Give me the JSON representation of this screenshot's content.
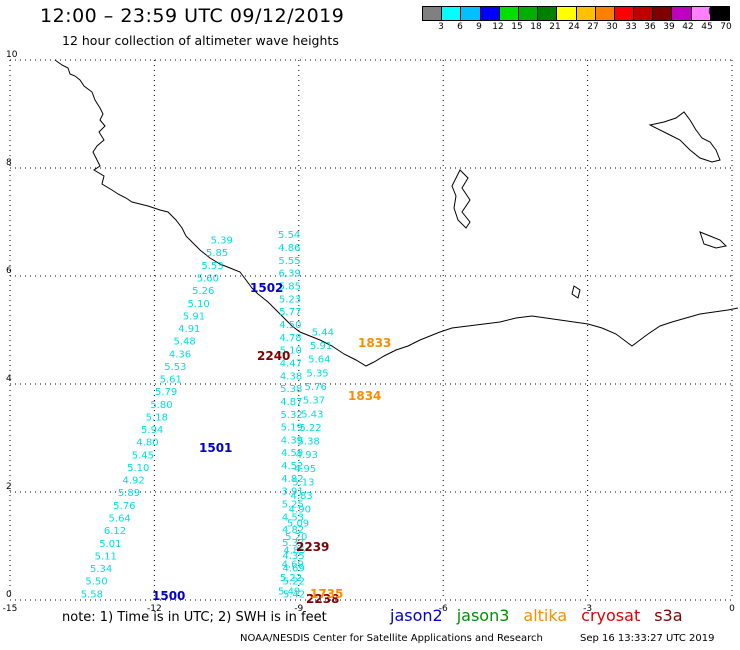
{
  "header": {
    "title": "12:00 – 23:59 UTC 09/12/2019",
    "subtitle": "12 hour collection of altimeter wave heights"
  },
  "scale": {
    "colors": [
      "#808080",
      "#00ffff",
      "#00c0ff",
      "#0000ff",
      "#00e000",
      "#00b000",
      "#008000",
      "#ffff00",
      "#ffc000",
      "#ff8000",
      "#ff0000",
      "#c00000",
      "#800000",
      "#c000c0",
      "#ff80ff",
      "#000000"
    ],
    "ticks": [
      "3",
      "6",
      "9",
      "12",
      "15",
      "18",
      "21",
      "24",
      "27",
      "30",
      "33",
      "36",
      "39",
      "42",
      "45",
      "70"
    ],
    "unit": "(ft)"
  },
  "axes": {
    "x_ticks": [
      "-15",
      "-12",
      "-9",
      "-6",
      "-3",
      "0"
    ],
    "y_ticks": [
      "0",
      "2",
      "4",
      "6",
      "8",
      "10"
    ]
  },
  "tracks": [
    {
      "name": "track-1500",
      "values": [
        "5.54",
        "4.86",
        "5.55",
        "6.39",
        "5.85",
        "5.23",
        "5.77",
        "4.50",
        "4.78",
        "5.10",
        "4.47",
        "4.38",
        "5.38",
        "4.87",
        "5.32",
        "5.19",
        "4.39",
        "4.59",
        "4.52",
        "4.82",
        "3.91",
        "5.25",
        "4.53",
        "4.82",
        "5.37",
        "4.35",
        "4.69",
        "5.22",
        "5.42"
      ]
    },
    {
      "name": "track-1501",
      "values": [
        "5.39",
        "5.85",
        "5.53",
        "5.60",
        "5.26",
        "5.10",
        "5.91",
        "4.91",
        "5.48",
        "4.36",
        "5.53",
        "5.61",
        "5.79",
        "5.80",
        "5.18",
        "5.94",
        "4.80",
        "5.45",
        "5.10",
        "4.92",
        "5.89",
        "5.76",
        "5.64",
        "6.12",
        "5.01",
        "5.11",
        "5.34",
        "5.50",
        "5.58"
      ]
    },
    {
      "name": "track-1834",
      "values": [
        "5.44",
        "5.91",
        "5.64",
        "5.35",
        "5.76",
        "5.37",
        "5.43",
        "5.22",
        "5.38",
        "4.93",
        "4.95",
        "5.13",
        "4.83",
        "4.90",
        "5.09",
        "5.20",
        "4.85",
        "4.69",
        "5.22",
        "5.49"
      ]
    }
  ],
  "labels": [
    {
      "text": "1502",
      "color": "#0000cc"
    },
    {
      "text": "1501",
      "color": "#0000cc"
    },
    {
      "text": "1500",
      "color": "#0000cc"
    },
    {
      "text": "2240",
      "color": "#800000"
    },
    {
      "text": "2239",
      "color": "#800000"
    },
    {
      "text": "2238",
      "color": "#800000"
    },
    {
      "text": "1833",
      "color": "#ff8c00"
    },
    {
      "text": "1834",
      "color": "#ff8c00"
    },
    {
      "text": "1735",
      "color": "#ff8c00"
    }
  ],
  "note": "note:  1) Time is in UTC;  2) SWH is in feet",
  "satellites": [
    {
      "name": "jason2",
      "color": "#0000cc"
    },
    {
      "name": "jason3",
      "color": "#009000"
    },
    {
      "name": "altika",
      "color": "#ff8c00"
    },
    {
      "name": "cryosat",
      "color": "#e00000"
    },
    {
      "name": "s3a",
      "color": "#800000"
    }
  ],
  "footer": {
    "credit": "NOAA/NESDIS Center for Satellite Applications and Research",
    "timestamp": "Sep 16 13:33:27 UTC 2019"
  }
}
